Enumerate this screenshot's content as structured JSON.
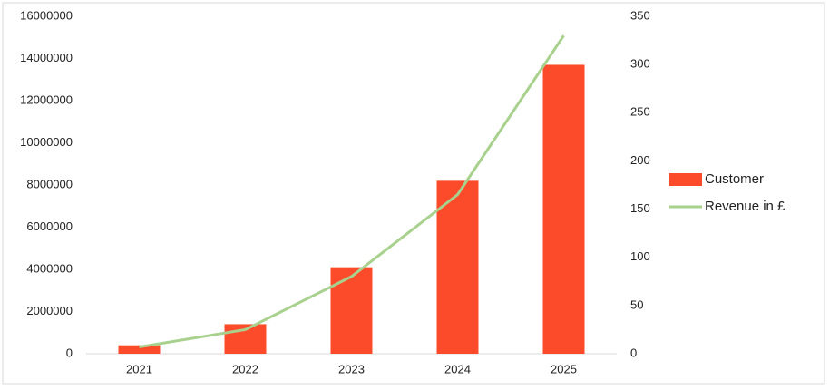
{
  "chart_data": {
    "type": "bar",
    "categories": [
      "2021",
      "2022",
      "2023",
      "2024",
      "2025"
    ],
    "series": [
      {
        "name": "Customer",
        "type": "bar",
        "color": "#fc4b2a",
        "values": [
          400000,
          1400000,
          4100000,
          8200000,
          13700000
        ]
      },
      {
        "name": "Revenue in £",
        "type": "line",
        "axis": "y2",
        "color": "#a9d18e",
        "values": [
          7,
          25,
          80,
          165,
          330
        ]
      }
    ],
    "ylim": [
      0,
      16000000
    ],
    "yticks": [
      0,
      2000000,
      4000000,
      6000000,
      8000000,
      10000000,
      12000000,
      14000000,
      16000000
    ],
    "y2lim": [
      0,
      350
    ],
    "y2ticks": [
      0,
      50,
      100,
      150,
      200,
      250,
      300,
      350
    ],
    "grid": false,
    "legend": "right"
  }
}
